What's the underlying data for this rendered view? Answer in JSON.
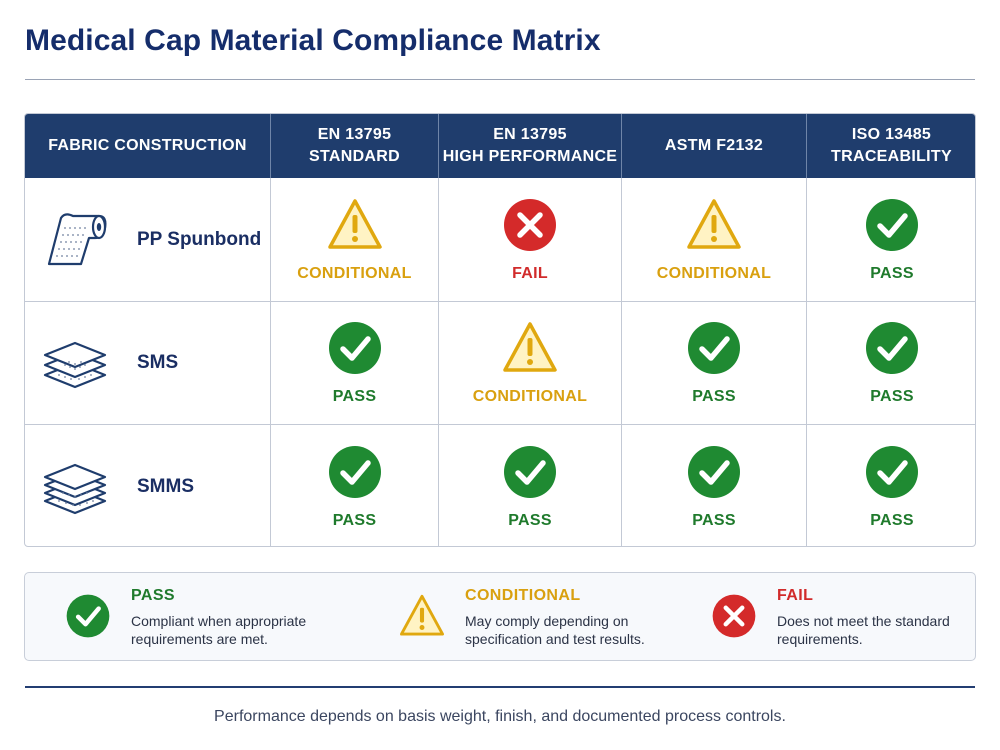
{
  "title": "Medical Cap Material Compliance Matrix",
  "columns": {
    "fabric": "FABRIC CONSTRUCTION",
    "en_std": "EN 13795\nSTANDARD",
    "en_hp": "EN 13795\nHIGH PERFORMANCE",
    "astm": "ASTM F2132",
    "iso": "ISO 13485\nTRACEABILITY"
  },
  "rows": [
    {
      "fabric": "PP Spunbond",
      "icon": "fabric-roll-icon",
      "en_std": "CONDITIONAL",
      "en_hp": "FAIL",
      "astm": "CONDITIONAL",
      "iso": "PASS"
    },
    {
      "fabric": "SMS",
      "icon": "layered-fabric-icon",
      "en_std": "PASS",
      "en_hp": "CONDITIONAL",
      "astm": "PASS",
      "iso": "PASS"
    },
    {
      "fabric": "SMMS",
      "icon": "layered-fabric-icon",
      "en_std": "PASS",
      "en_hp": "PASS",
      "astm": "PASS",
      "iso": "PASS"
    }
  ],
  "legend": {
    "pass": {
      "title": "PASS",
      "desc": "Compliant when appropriate requirements are met."
    },
    "conditional": {
      "title": "CONDITIONAL",
      "desc": "May comply depending on specification and test results."
    },
    "fail": {
      "title": "FAIL",
      "desc": "Does not meet the standard requirements."
    }
  },
  "footnote": "Performance depends on basis weight, finish, and documented process controls.",
  "colors": {
    "header_bg": "#1f3d6d",
    "title": "#152d6b",
    "pass": "#1f7a2c",
    "conditional": "#d9a00f",
    "fail": "#d12b2b"
  }
}
